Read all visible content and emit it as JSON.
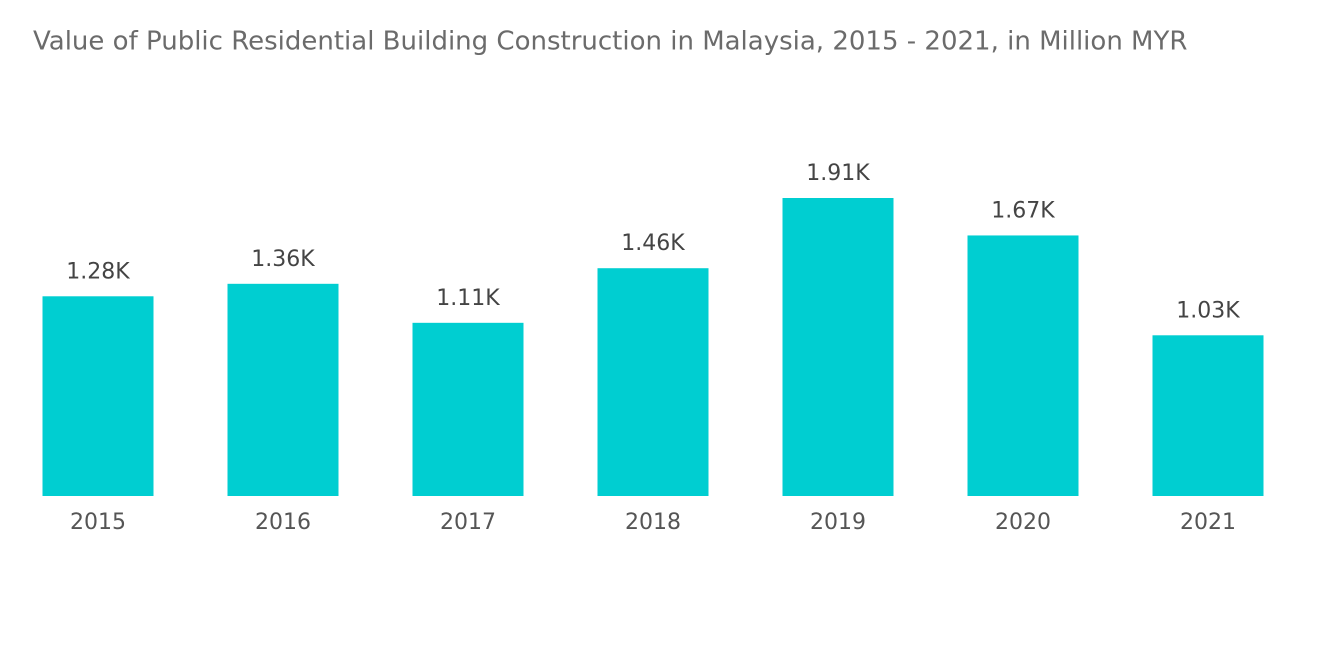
{
  "chart_data": {
    "type": "bar",
    "title": "Value of Public Residential Building Construction in Malaysia, 2015 - 2021, in Million MYR",
    "categories": [
      "2015",
      "2016",
      "2017",
      "2018",
      "2019",
      "2020",
      "2021"
    ],
    "values": [
      1280,
      1360,
      1110,
      1460,
      1910,
      1670,
      1030
    ],
    "value_labels": [
      "1.28K",
      "1.36K",
      "1.11K",
      "1.46K",
      "1.91K",
      "1.67K",
      "1.03K"
    ],
    "color": "#00ced1"
  }
}
